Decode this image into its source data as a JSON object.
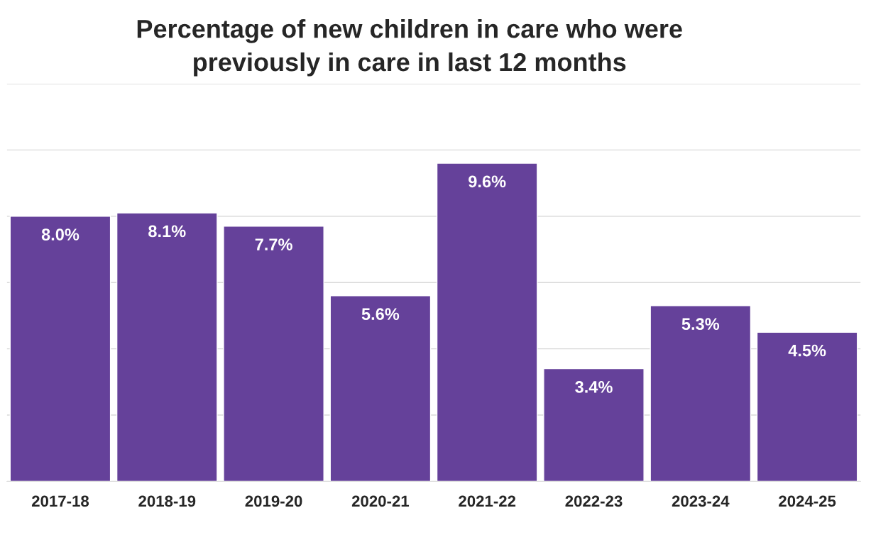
{
  "chart_data": {
    "type": "bar",
    "title": "Percentage of new children in care who were\npreviously in care in last 12 months",
    "categories": [
      "2017-18",
      "2018-19",
      "2019-20",
      "2020-21",
      "2021-22",
      "2022-23",
      "2023-24",
      "2024-25"
    ],
    "values": [
      8.0,
      8.1,
      7.7,
      5.6,
      9.6,
      3.4,
      5.3,
      4.5
    ],
    "value_labels": [
      "8.0%",
      "8.1%",
      "7.7%",
      "5.6%",
      "9.6%",
      "3.4%",
      "5.3%",
      "4.5%"
    ],
    "color": "#65419a",
    "ylim": [
      0,
      12
    ],
    "yticks": [
      {
        "value": 0,
        "label": null
      },
      {
        "value": 2,
        "label": null
      },
      {
        "value": 4,
        "label": null
      },
      {
        "value": 6,
        "label": null
      },
      {
        "value": 8,
        "label": null
      },
      {
        "value": 10,
        "label": null
      },
      {
        "value": 12,
        "label": null
      }
    ],
    "tick_labels": "x",
    "grid": "y",
    "legend": false
  }
}
